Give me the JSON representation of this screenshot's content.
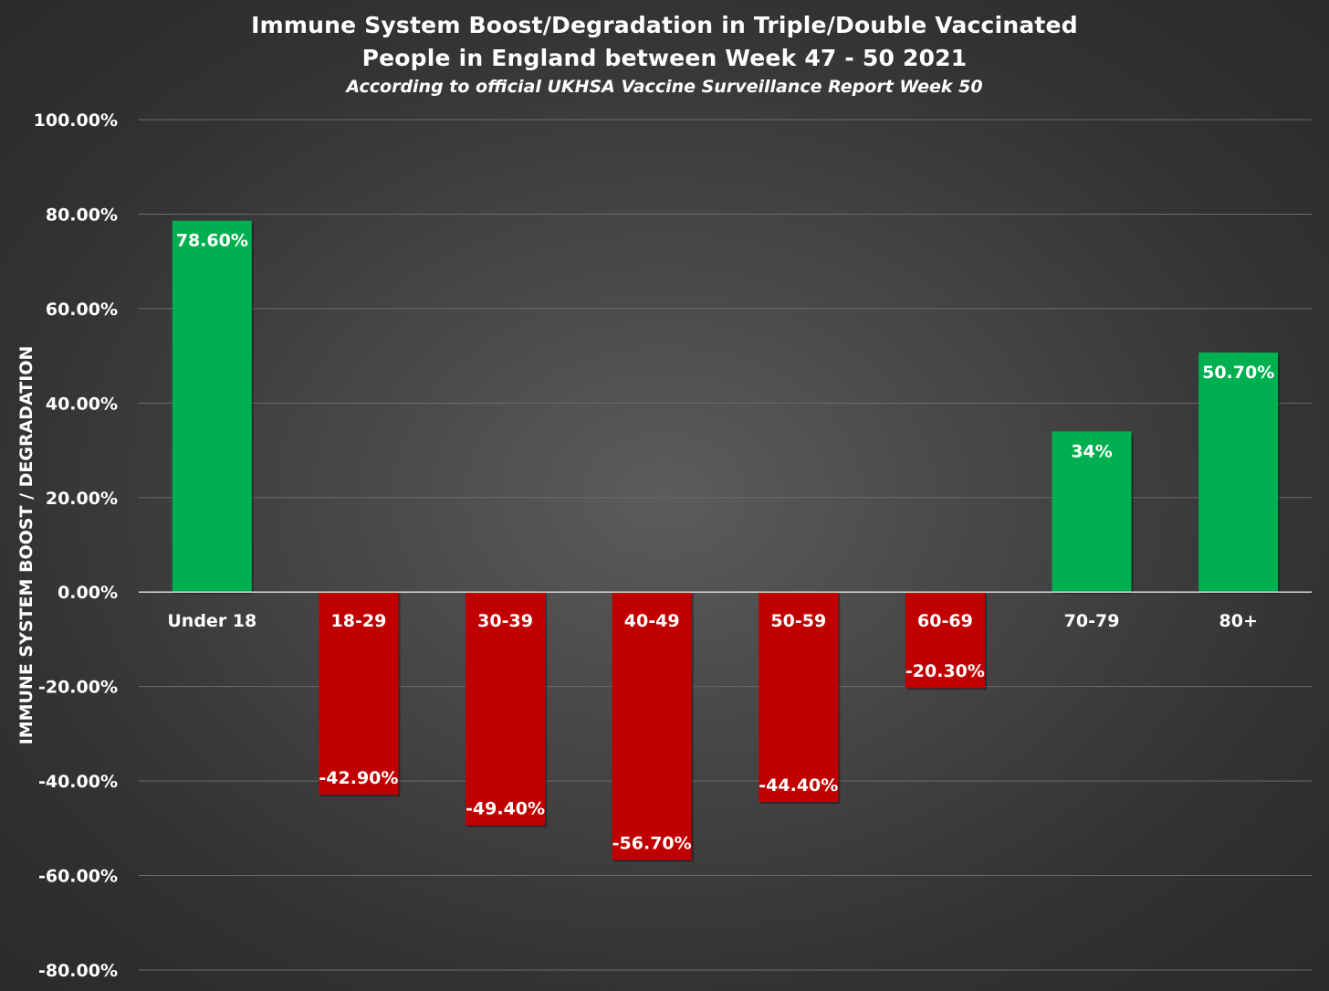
{
  "chart_data": {
    "type": "bar",
    "title_line1": "Immune System Boost/Degradation in Triple/Double Vaccinated",
    "title_line2": "People in England between Week 47 - 50 2021",
    "subtitle": "According to official UKHSA Vaccine Surveillance Report Week 50",
    "ylabel": "IMMUNE SYSTEM BOOST / DEGRADATION",
    "xlabel": "",
    "ylim": [
      -80,
      100
    ],
    "yticks": [
      100,
      80,
      60,
      40,
      20,
      0,
      -20,
      -40,
      -60,
      -80
    ],
    "ytick_labels": [
      "100.00%",
      "80.00%",
      "60.00%",
      "40.00%",
      "20.00%",
      "0.00%",
      "-20.00%",
      "-40.00%",
      "-60.00%",
      "-80.00%"
    ],
    "grid": true,
    "categories": [
      "Under 18",
      "18-29",
      "30-39",
      "40-49",
      "50-59",
      "60-69",
      "70-79",
      "80+"
    ],
    "values": [
      78.6,
      -42.9,
      -49.4,
      -56.7,
      -44.4,
      -20.3,
      34,
      50.7
    ],
    "data_labels": [
      "78.60%",
      "-42.90%",
      "-49.40%",
      "-56.70%",
      "-44.40%",
      "-20.30%",
      "34%",
      "50.70%"
    ],
    "colors": {
      "positive": "#00b050",
      "negative": "#c00000",
      "gridline": "#6a6a6a",
      "axis": "#d9d9d9"
    }
  }
}
